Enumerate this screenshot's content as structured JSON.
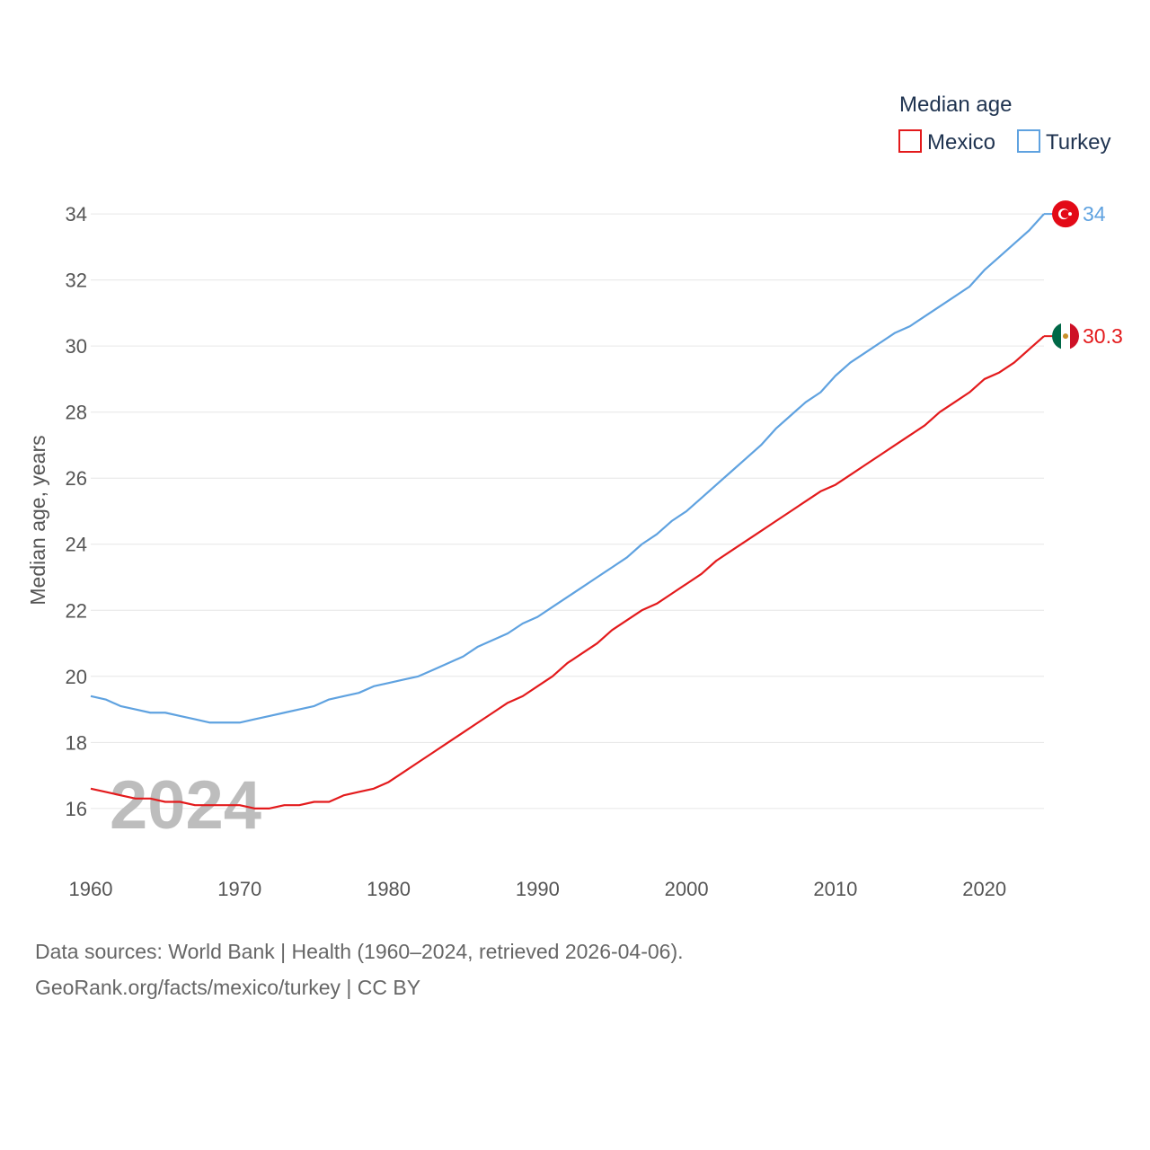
{
  "chart_data": {
    "type": "line",
    "title": "",
    "ylabel": "Median age, years",
    "xlabel": "",
    "legend_title": "Median age",
    "legend_position": "top-right",
    "watermark_year": "2024",
    "xlim": [
      1960,
      2024
    ],
    "ylim": [
      14.5,
      35.2
    ],
    "x_ticks": [
      "1960",
      "1970",
      "1980",
      "1990",
      "2000",
      "2010",
      "2020"
    ],
    "y_ticks": [
      "16",
      "18",
      "20",
      "22",
      "24",
      "26",
      "28",
      "30",
      "32",
      "34"
    ],
    "grid": true,
    "x": [
      1960,
      1961,
      1962,
      1963,
      1964,
      1965,
      1966,
      1967,
      1968,
      1969,
      1970,
      1971,
      1972,
      1973,
      1974,
      1975,
      1976,
      1977,
      1978,
      1979,
      1980,
      1981,
      1982,
      1983,
      1984,
      1985,
      1986,
      1987,
      1988,
      1989,
      1990,
      1991,
      1992,
      1993,
      1994,
      1995,
      1996,
      1997,
      1998,
      1999,
      2000,
      2001,
      2002,
      2003,
      2004,
      2005,
      2006,
      2007,
      2008,
      2009,
      2010,
      2011,
      2012,
      2013,
      2014,
      2015,
      2016,
      2017,
      2018,
      2019,
      2020,
      2021,
      2022,
      2023,
      2024
    ],
    "series": [
      {
        "name": "Mexico",
        "color": "#e31a1c",
        "end_label": "30.3",
        "flag": "mexico-flag",
        "values": [
          16.6,
          16.5,
          16.4,
          16.3,
          16.3,
          16.2,
          16.2,
          16.1,
          16.1,
          16.1,
          16.1,
          16.0,
          16.0,
          16.1,
          16.1,
          16.2,
          16.2,
          16.4,
          16.5,
          16.6,
          16.8,
          17.1,
          17.4,
          17.7,
          18.0,
          18.3,
          18.6,
          18.9,
          19.2,
          19.4,
          19.7,
          20.0,
          20.4,
          20.7,
          21.0,
          21.4,
          21.7,
          22.0,
          22.2,
          22.5,
          22.8,
          23.1,
          23.5,
          23.8,
          24.1,
          24.4,
          24.7,
          25.0,
          25.3,
          25.6,
          25.8,
          26.1,
          26.4,
          26.7,
          27.0,
          27.3,
          27.6,
          28.0,
          28.3,
          28.6,
          29.0,
          29.2,
          29.5,
          29.9,
          30.3
        ]
      },
      {
        "name": "Turkey",
        "color": "#5fa2e0",
        "end_label": "34",
        "flag": "turkey-flag",
        "values": [
          19.4,
          19.3,
          19.1,
          19.0,
          18.9,
          18.9,
          18.8,
          18.7,
          18.6,
          18.6,
          18.6,
          18.7,
          18.8,
          18.9,
          19.0,
          19.1,
          19.3,
          19.4,
          19.5,
          19.7,
          19.8,
          19.9,
          20.0,
          20.2,
          20.4,
          20.6,
          20.9,
          21.1,
          21.3,
          21.6,
          21.8,
          22.1,
          22.4,
          22.7,
          23.0,
          23.3,
          23.6,
          24.0,
          24.3,
          24.7,
          25.0,
          25.4,
          25.8,
          26.2,
          26.6,
          27.0,
          27.5,
          27.9,
          28.3,
          28.6,
          29.1,
          29.5,
          29.8,
          30.1,
          30.4,
          30.6,
          30.9,
          31.2,
          31.5,
          31.8,
          32.3,
          32.7,
          33.1,
          33.5,
          34.0
        ]
      }
    ]
  },
  "footer": {
    "sources": "Data sources: World Bank | Health (1960–2024, retrieved 2026-04-06).",
    "credit": "GeoRank.org/facts/mexico/turkey | CC BY"
  }
}
